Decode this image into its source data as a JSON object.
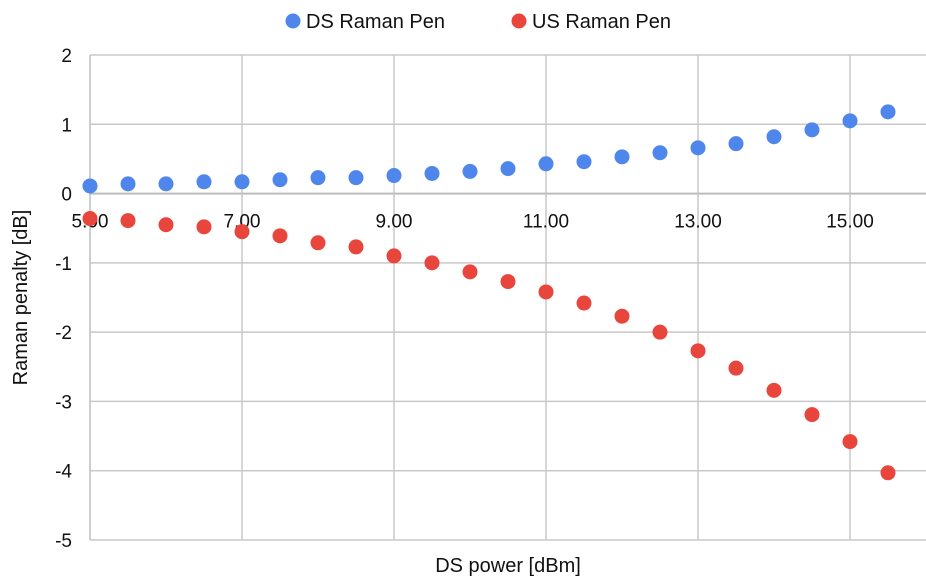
{
  "chart_data": {
    "type": "scatter",
    "xlabel": "DS power [dBm]",
    "ylabel": "Raman penalty [dB]",
    "xlim": [
      5,
      16
    ],
    "ylim": [
      -5,
      2
    ],
    "xticks": [
      "5.00",
      "7.00",
      "9.00",
      "11.00",
      "13.00",
      "15.00"
    ],
    "xtick_values": [
      5,
      7,
      9,
      11,
      13,
      15
    ],
    "yticks": [
      "-5",
      "-4",
      "-3",
      "-2",
      "-1",
      "0",
      "1",
      "2"
    ],
    "ytick_values": [
      -5,
      -4,
      -3,
      -2,
      -1,
      0,
      1,
      2
    ],
    "grid": true,
    "legend_position": "top",
    "x": [
      5.0,
      5.5,
      6.0,
      6.5,
      7.0,
      7.5,
      8.0,
      8.5,
      9.0,
      9.5,
      10.0,
      10.5,
      11.0,
      11.5,
      12.0,
      12.5,
      13.0,
      13.5,
      14.0,
      14.5,
      15.0,
      15.5
    ],
    "series": [
      {
        "name": "DS Raman Pen",
        "color": "#4f86ec",
        "values": [
          0.11,
          0.14,
          0.14,
          0.17,
          0.17,
          0.2,
          0.23,
          0.23,
          0.26,
          0.29,
          0.32,
          0.36,
          0.43,
          0.46,
          0.53,
          0.59,
          0.66,
          0.72,
          0.82,
          0.92,
          1.05,
          1.18
        ]
      },
      {
        "name": "US Raman Pen",
        "color": "#e8453c",
        "values": [
          -0.36,
          -0.39,
          -0.45,
          -0.48,
          -0.55,
          -0.61,
          -0.71,
          -0.77,
          -0.9,
          -1.0,
          -1.13,
          -1.27,
          -1.42,
          -1.58,
          -1.77,
          -2.0,
          -2.27,
          -2.52,
          -2.84,
          -3.19,
          -3.58,
          -4.03
        ]
      }
    ]
  }
}
